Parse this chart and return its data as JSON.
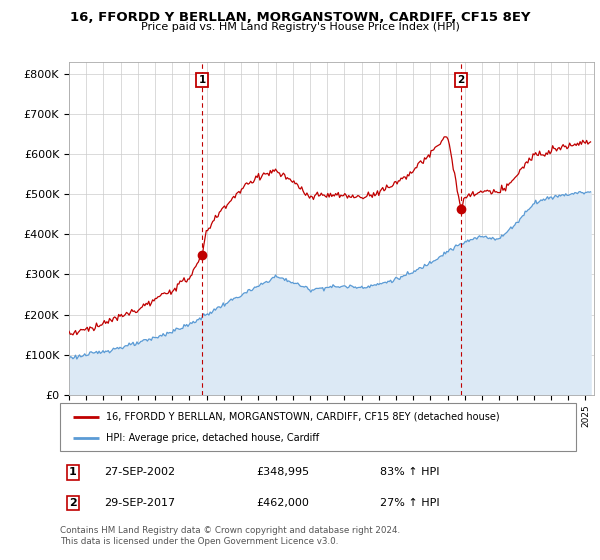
{
  "title": "16, FFORDD Y BERLLAN, MORGANSTOWN, CARDIFF, CF15 8EY",
  "subtitle": "Price paid vs. HM Land Registry's House Price Index (HPI)",
  "ylabel_ticks": [
    "£0",
    "£100K",
    "£200K",
    "£300K",
    "£400K",
    "£500K",
    "£600K",
    "£700K",
    "£800K"
  ],
  "ytick_values": [
    0,
    100000,
    200000,
    300000,
    400000,
    500000,
    600000,
    700000,
    800000
  ],
  "ylim": [
    0,
    830000
  ],
  "xlim_start": 1995.0,
  "xlim_end": 2025.5,
  "purchase1": {
    "date": "27-SEP-2002",
    "price": 348995,
    "x": 2002.75
  },
  "purchase2": {
    "date": "29-SEP-2017",
    "price": 462000,
    "x": 2017.75
  },
  "legend_line1": "16, FFORDD Y BERLLAN, MORGANSTOWN, CARDIFF, CF15 8EY (detached house)",
  "legend_line2": "HPI: Average price, detached house, Cardiff",
  "footer": "Contains HM Land Registry data © Crown copyright and database right 2024.\nThis data is licensed under the Open Government Licence v3.0.",
  "hpi_color": "#5b9bd5",
  "hpi_fill_color": "#dce9f5",
  "price_color": "#c00000",
  "background_color": "#ffffff",
  "grid_color": "#cccccc",
  "hpi_knots_x": [
    1995,
    1996,
    1997,
    1998,
    1999,
    2000,
    2001,
    2002,
    2003,
    2004,
    2005,
    2006,
    2007,
    2008,
    2009,
    2010,
    2011,
    2012,
    2013,
    2014,
    2015,
    2016,
    2017,
    2018,
    2019,
    2020,
    2021,
    2022,
    2023,
    2024,
    2025
  ],
  "hpi_knots_y": [
    92000,
    99000,
    108000,
    118000,
    128000,
    142000,
    158000,
    175000,
    200000,
    225000,
    248000,
    270000,
    295000,
    280000,
    262000,
    268000,
    270000,
    268000,
    275000,
    288000,
    305000,
    330000,
    358000,
    380000,
    395000,
    388000,
    428000,
    478000,
    492000,
    500000,
    505000
  ],
  "prop_knots_x": [
    1995,
    1996,
    1997,
    1998,
    1999,
    2000,
    2001,
    2002,
    2002.75,
    2003,
    2004,
    2005,
    2006,
    2007,
    2008,
    2009,
    2010,
    2011,
    2012,
    2013,
    2014,
    2015,
    2016,
    2017,
    2017.75,
    2018,
    2019,
    2020,
    2021,
    2022,
    2023,
    2024,
    2025
  ],
  "prop_knots_y": [
    152000,
    163000,
    178000,
    195000,
    212000,
    236000,
    262000,
    292000,
    348995,
    410000,
    468000,
    510000,
    545000,
    558000,
    530000,
    492000,
    498000,
    495000,
    492000,
    505000,
    528000,
    558000,
    600000,
    648000,
    462000,
    490000,
    508000,
    502000,
    545000,
    598000,
    610000,
    622000,
    630000
  ]
}
